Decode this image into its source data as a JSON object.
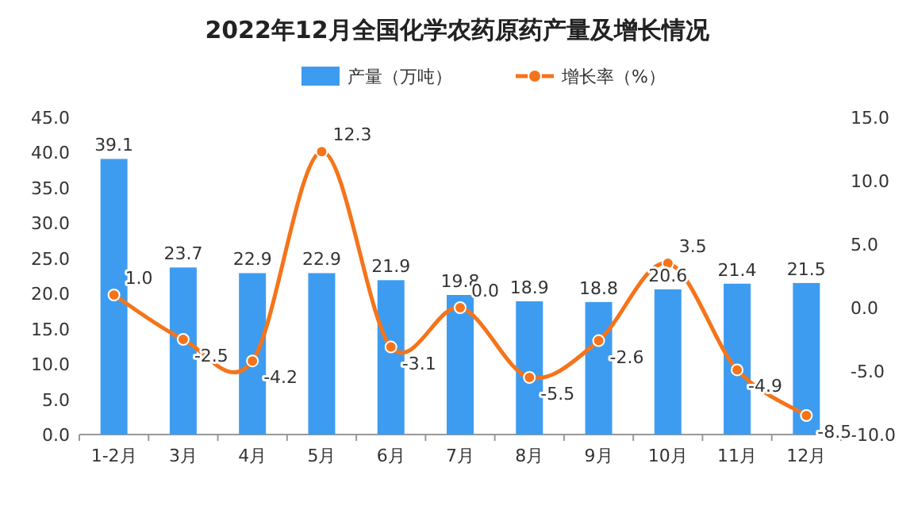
{
  "chart_data": {
    "type": "bar",
    "title": "2022年12月全国化学农药原药产量及增长情况",
    "categories": [
      "1-2月",
      "3月",
      "4月",
      "5月",
      "6月",
      "7月",
      "8月",
      "9月",
      "10月",
      "11月",
      "12月"
    ],
    "series": [
      {
        "name": "产量（万吨）",
        "color": "#3d9cf0",
        "values": [
          39.1,
          23.7,
          22.9,
          22.9,
          21.9,
          19.8,
          18.9,
          18.8,
          20.6,
          21.4,
          21.5
        ]
      },
      {
        "name": "增长率（%）",
        "type": "line",
        "axis": "y2",
        "color": "#f5741a",
        "values": [
          1.0,
          -2.5,
          -4.2,
          12.3,
          -3.1,
          0.0,
          -5.5,
          -2.6,
          3.5,
          -4.9,
          -8.5
        ],
        "value_labels": [
          "1.0",
          "-2.5",
          "-4.2",
          "12.3",
          "-3.1",
          "0.0",
          "-5.5",
          "-2.6",
          "3.5",
          "-4.9",
          "-8.5"
        ]
      }
    ],
    "ylim": [
      0,
      45
    ],
    "yticks": [
      {
        "value": 0,
        "label": "0.0"
      },
      {
        "value": 5,
        "label": "5.0"
      },
      {
        "value": 10,
        "label": "10.0"
      },
      {
        "value": 15,
        "label": "15.0"
      },
      {
        "value": 20,
        "label": "20.0"
      },
      {
        "value": 25,
        "label": "25.0"
      },
      {
        "value": 30,
        "label": "30.0"
      },
      {
        "value": 35,
        "label": "35.0"
      },
      {
        "value": 40,
        "label": "40.0"
      },
      {
        "value": 45,
        "label": "45.0"
      }
    ],
    "y2lim": [
      -10,
      15
    ],
    "y2ticks": [
      {
        "value": -10,
        "label": "-10.0"
      },
      {
        "value": -5,
        "label": "-5.0"
      },
      {
        "value": 0,
        "label": "0.0"
      },
      {
        "value": 5,
        "label": "5.0"
      },
      {
        "value": 10,
        "label": "10.0"
      },
      {
        "value": 15,
        "label": "15.0"
      }
    ],
    "legend": "top",
    "data_labels": true,
    "marker": "circle"
  }
}
